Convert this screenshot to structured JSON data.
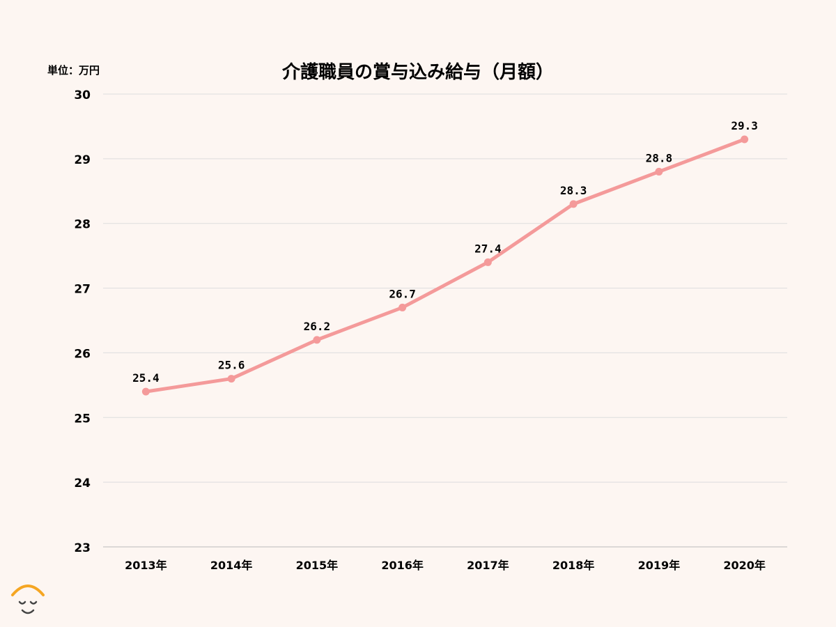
{
  "chart_data": {
    "type": "line",
    "title": "介護職員の賞与込み給与（月額）",
    "unit_label": "単位：万円",
    "categories": [
      "2013年",
      "2014年",
      "2015年",
      "2016年",
      "2017年",
      "2018年",
      "2019年",
      "2020年"
    ],
    "series": [
      {
        "values": [
          25.4,
          25.6,
          26.2,
          26.7,
          27.4,
          28.3,
          28.8,
          29.3
        ]
      }
    ],
    "data_labels": [
      "25.4",
      "25.6",
      "26.2",
      "26.7",
      "27.4",
      "28.3",
      "28.8",
      "29.3"
    ],
    "ylim": [
      23,
      30
    ],
    "yticks": [
      "23",
      "24",
      "25",
      "26",
      "27",
      "28",
      "29",
      "30"
    ],
    "grid": true,
    "legend": "none",
    "line_color": "#f49a9a"
  },
  "logo": {
    "icon": "smiling-face-logo-icon",
    "color_top": "#f5a623",
    "color_face": "#444444"
  }
}
